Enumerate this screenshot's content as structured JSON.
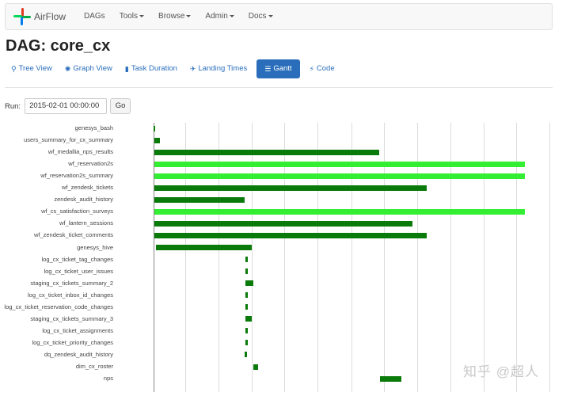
{
  "navbar": {
    "brand": "AirFlow",
    "items": [
      {
        "label": "DAGs",
        "dropdown": false
      },
      {
        "label": "Tools",
        "dropdown": true
      },
      {
        "label": "Browse",
        "dropdown": true
      },
      {
        "label": "Admin",
        "dropdown": true
      },
      {
        "label": "Docs",
        "dropdown": true
      }
    ]
  },
  "page_title": "DAG: core_cx",
  "tabs": [
    {
      "label": "Tree View",
      "icon": "tree-icon",
      "glyph": "⚲",
      "active": false
    },
    {
      "label": "Graph View",
      "icon": "graph-icon",
      "glyph": "✺",
      "active": false
    },
    {
      "label": "Task Duration",
      "icon": "bar-chart-icon",
      "glyph": "▮",
      "active": false
    },
    {
      "label": "Landing Times",
      "icon": "plane-icon",
      "glyph": "✈",
      "active": false
    },
    {
      "label": "Gantt",
      "icon": "gantt-icon",
      "glyph": "☰",
      "active": true
    },
    {
      "label": "Code",
      "icon": "bolt-icon",
      "glyph": "⚡",
      "active": false
    }
  ],
  "run": {
    "label": "Run:",
    "value": "2015-02-01 00:00:00",
    "go_label": "Go"
  },
  "colors": {
    "dark_green": "#0a7a0a",
    "light_green": "#33ee33",
    "link": "#2a6ebb"
  },
  "chart_data": {
    "type": "gantt",
    "x_unit": "relative time (0–1 of visible timeline)",
    "tasks": [
      {
        "name": "genesys_bash",
        "start": 0.0,
        "end": 0.004,
        "state": "success"
      },
      {
        "name": "users_summary_for_cx_summary",
        "start": 0.002,
        "end": 0.018,
        "state": "success"
      },
      {
        "name": "wf_medallia_nps_results",
        "start": 0.002,
        "end": 0.607,
        "state": "success"
      },
      {
        "name": "wf_reservation2s",
        "start": 0.002,
        "end": 1.0,
        "state": "running"
      },
      {
        "name": "wf_reservation2s_summary",
        "start": 0.002,
        "end": 1.0,
        "state": "running"
      },
      {
        "name": "wf_zendesk_tickets",
        "start": 0.002,
        "end": 0.735,
        "state": "success"
      },
      {
        "name": "zendesk_audit_history",
        "start": 0.002,
        "end": 0.245,
        "state": "success"
      },
      {
        "name": "wf_cs_satisfaction_surveys",
        "start": 0.002,
        "end": 1.0,
        "state": "running"
      },
      {
        "name": "wf_lantern_sessions",
        "start": 0.002,
        "end": 0.697,
        "state": "success"
      },
      {
        "name": "wf_zendesk_ticket_comments",
        "start": 0.002,
        "end": 0.735,
        "state": "success"
      },
      {
        "name": "genesys_hive",
        "start": 0.006,
        "end": 0.265,
        "state": "success"
      },
      {
        "name": "log_cx_ticket_tag_changes",
        "start": 0.248,
        "end": 0.254,
        "state": "success"
      },
      {
        "name": "log_cx_ticket_user_issues",
        "start": 0.248,
        "end": 0.254,
        "state": "success"
      },
      {
        "name": "staging_cx_tickets_summary_2",
        "start": 0.248,
        "end": 0.269,
        "state": "success"
      },
      {
        "name": "log_cx_ticket_inbox_id_changes",
        "start": 0.248,
        "end": 0.254,
        "state": "success"
      },
      {
        "name": "log_cx_ticket_reservation_code_changes",
        "start": 0.248,
        "end": 0.254,
        "state": "success"
      },
      {
        "name": "staging_cx_tickets_summary_3",
        "start": 0.248,
        "end": 0.265,
        "state": "success"
      },
      {
        "name": "log_cx_ticket_assignments",
        "start": 0.248,
        "end": 0.254,
        "state": "success"
      },
      {
        "name": "log_cx_ticket_priority_changes",
        "start": 0.248,
        "end": 0.254,
        "state": "success"
      },
      {
        "name": "dq_zendesk_audit_history",
        "start": 0.246,
        "end": 0.251,
        "state": "success"
      },
      {
        "name": "dim_cx_roster",
        "start": 0.269,
        "end": 0.282,
        "state": "success"
      },
      {
        "name": "nps",
        "start": 0.61,
        "end": 0.668,
        "state": "success"
      }
    ]
  },
  "watermark": "知乎 @超人"
}
